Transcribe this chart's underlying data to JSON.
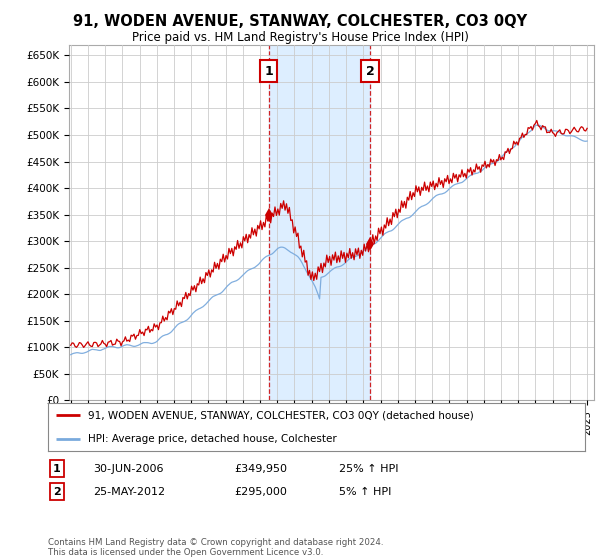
{
  "title": "91, WODEN AVENUE, STANWAY, COLCHESTER, CO3 0QY",
  "subtitle": "Price paid vs. HM Land Registry's House Price Index (HPI)",
  "ylabel_ticks": [
    "£0",
    "£50K",
    "£100K",
    "£150K",
    "£200K",
    "£250K",
    "£300K",
    "£350K",
    "£400K",
    "£450K",
    "£500K",
    "£550K",
    "£600K",
    "£650K"
  ],
  "ytick_vals": [
    0,
    50000,
    100000,
    150000,
    200000,
    250000,
    300000,
    350000,
    400000,
    450000,
    500000,
    550000,
    600000,
    650000
  ],
  "ylim": [
    0,
    670000
  ],
  "xlim_start": 1994.9,
  "xlim_end": 2025.4,
  "sale1_x": 2006.5,
  "sale1_y": 349950,
  "sale1_label": "1",
  "sale2_x": 2012.38,
  "sale2_y": 295000,
  "sale2_label": "2",
  "sale_color": "#cc0000",
  "hpi_color": "#7aaadd",
  "shade_color": "#ddeeff",
  "grid_color": "#cccccc",
  "annotation_box_color": "#cc0000",
  "legend_line1": "91, WODEN AVENUE, STANWAY, COLCHESTER, CO3 0QY (detached house)",
  "legend_line2": "HPI: Average price, detached house, Colchester",
  "table_row1": [
    "1",
    "30-JUN-2006",
    "£349,950",
    "25% ↑ HPI"
  ],
  "table_row2": [
    "2",
    "25-MAY-2012",
    "£295,000",
    "5% ↑ HPI"
  ],
  "footer": "Contains HM Land Registry data © Crown copyright and database right 2024.\nThis data is licensed under the Open Government Licence v3.0.",
  "background_color": "#ffffff"
}
